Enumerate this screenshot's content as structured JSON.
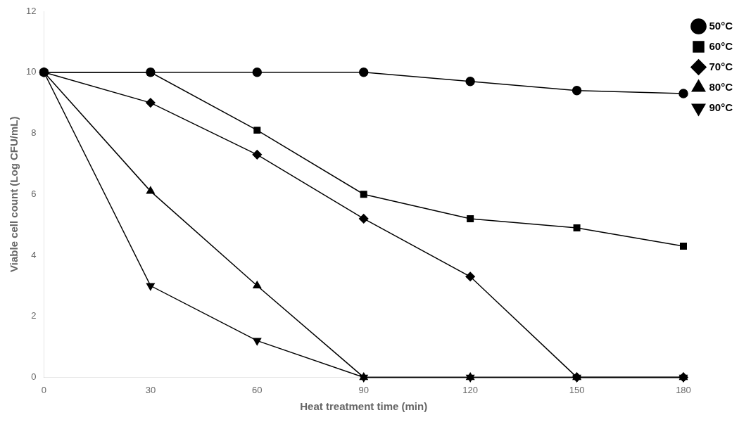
{
  "chart_data": {
    "type": "line",
    "x": [
      0,
      30,
      60,
      90,
      120,
      150,
      180
    ],
    "series": [
      {
        "name": "50°C",
        "color": "#000000",
        "marker": "circle",
        "values": [
          10.0,
          10.0,
          10.0,
          10.0,
          9.7,
          9.4,
          9.3
        ]
      },
      {
        "name": "60°C",
        "color": "#000000",
        "marker": "square",
        "values": [
          10.0,
          10.0,
          8.1,
          6.0,
          5.2,
          4.9,
          4.3
        ]
      },
      {
        "name": "70°C",
        "color": "#000000",
        "marker": "diamond",
        "values": [
          10.0,
          9.0,
          7.3,
          5.2,
          3.3,
          0.0,
          0.0
        ]
      },
      {
        "name": "80°C",
        "color": "#000000",
        "marker": "triangle-up",
        "values": [
          10.0,
          6.1,
          3.0,
          0.0,
          0.0,
          0.0,
          0.0
        ]
      },
      {
        "name": "90°C",
        "color": "#000000",
        "marker": "triangle-down",
        "values": [
          10.0,
          3.0,
          1.2,
          0.0,
          0.0,
          0.0,
          0.0
        ]
      }
    ],
    "xlabel": "Heat treatment time (min)",
    "ylabel": "Viable cell count (Log CFU/mL)",
    "xlim": [
      0,
      180
    ],
    "xticks": [
      0,
      30,
      60,
      90,
      120,
      150,
      180
    ],
    "ylim": [
      0,
      12
    ],
    "yticks": [
      0,
      2,
      4,
      6,
      8,
      10,
      12
    ],
    "grid": false,
    "legend": "right"
  }
}
